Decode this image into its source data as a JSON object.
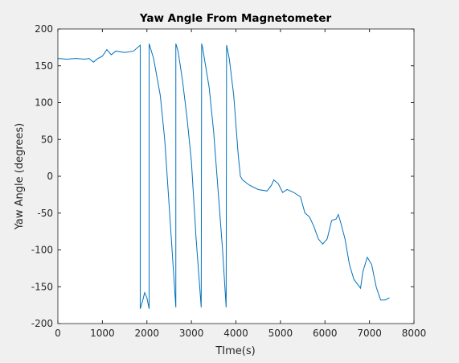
{
  "chart_data": {
    "type": "line",
    "title": "Yaw Angle From Magnetometer",
    "xlabel": "TIme(s)",
    "ylabel": "Yaw Angle (degrees)",
    "x": [
      0,
      200,
      400,
      600,
      700,
      800,
      900,
      1000,
      1100,
      1200,
      1300,
      1500,
      1700,
      1850,
      1850,
      1900,
      1950,
      2000,
      2050,
      2050,
      2150,
      2300,
      2400,
      2500,
      2650,
      2650,
      2700,
      2800,
      2900,
      3000,
      3100,
      3220,
      3230,
      3250,
      3400,
      3500,
      3600,
      3700,
      3780,
      3790,
      3850,
      3950,
      4050,
      4100,
      4150,
      4300,
      4500,
      4700,
      4800,
      4850,
      4950,
      5050,
      5150,
      5300,
      5450,
      5550,
      5650,
      5750,
      5850,
      5950,
      6050,
      6150,
      6250,
      6300,
      6350,
      6450,
      6550,
      6650,
      6750,
      6800,
      6850,
      6950,
      7050,
      7150,
      7250,
      7350,
      7450
    ],
    "series": [
      {
        "name": "Yaw",
        "color": "#0072bd",
        "values": [
          160,
          159,
          160,
          159,
          160,
          155,
          160,
          163,
          172,
          165,
          170,
          168,
          170,
          178,
          -180,
          -170,
          -158,
          -165,
          -180,
          180,
          160,
          110,
          50,
          -40,
          -178,
          180,
          170,
          130,
          80,
          20,
          -80,
          -178,
          180,
          175,
          120,
          60,
          -20,
          -100,
          -178,
          178,
          160,
          110,
          30,
          0,
          -5,
          -12,
          -18,
          -20,
          -12,
          -5,
          -10,
          -22,
          -18,
          -22,
          -28,
          -50,
          -55,
          -68,
          -85,
          -92,
          -85,
          -60,
          -58,
          -52,
          -62,
          -85,
          -120,
          -140,
          -148,
          -152,
          -130,
          -110,
          -120,
          -150,
          -168,
          -168,
          -165
        ]
      }
    ],
    "xlim": [
      0,
      8000
    ],
    "xticks": [
      0,
      1000,
      2000,
      3000,
      4000,
      5000,
      6000,
      7000,
      8000
    ],
    "ylim": [
      -200,
      200
    ],
    "yticks": [
      -200,
      -150,
      -100,
      -50,
      0,
      50,
      100,
      150,
      200
    ]
  }
}
